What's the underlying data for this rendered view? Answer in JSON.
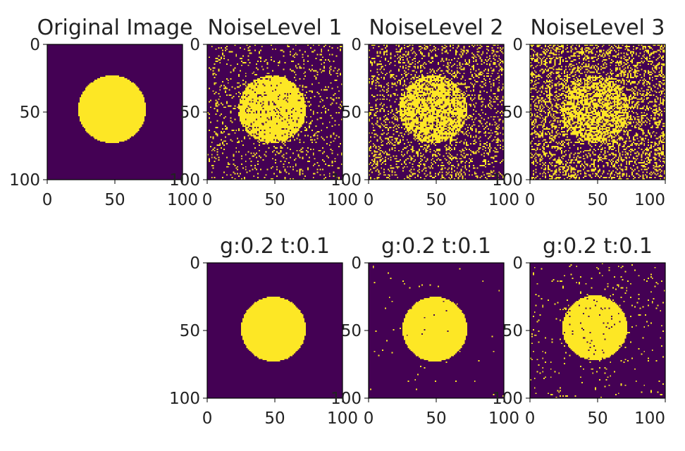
{
  "colors": {
    "background_class": "#440154",
    "foreground_class": "#fde725",
    "axis": "#000000",
    "text": "#222222"
  },
  "chart_data": [
    {
      "type": "heatmap",
      "image": "binary-circle",
      "title": "Original Image",
      "xlim": [
        0,
        100
      ],
      "ylim": [
        100,
        0
      ],
      "xticks": [
        "0",
        "50",
        "100"
      ],
      "yticks": [
        "0",
        "50",
        "100"
      ],
      "circle": {
        "cx": 48,
        "cy": 48,
        "r": 25
      },
      "noise_fraction": 0.0,
      "seed": 11
    },
    {
      "type": "heatmap",
      "image": "noisy-circle",
      "title": "NoiseLevel 1",
      "xlim": [
        0,
        100
      ],
      "ylim": [
        100,
        0
      ],
      "xticks": [
        "0",
        "50",
        "100"
      ],
      "yticks": [
        "0",
        "50",
        "100"
      ],
      "circle": {
        "cx": 48,
        "cy": 48,
        "r": 25
      },
      "noise_fraction": 0.1,
      "seed": 21
    },
    {
      "type": "heatmap",
      "image": "noisy-circle",
      "title": "NoiseLevel 2",
      "xlim": [
        0,
        100
      ],
      "ylim": [
        100,
        0
      ],
      "xticks": [
        "0",
        "50",
        "100"
      ],
      "yticks": [
        "0",
        "50",
        "100"
      ],
      "circle": {
        "cx": 48,
        "cy": 48,
        "r": 25
      },
      "noise_fraction": 0.2,
      "seed": 37
    },
    {
      "type": "heatmap",
      "image": "noisy-circle",
      "title": "NoiseLevel 3",
      "xlim": [
        0,
        100
      ],
      "ylim": [
        100,
        0
      ],
      "xticks": [
        "0",
        "50",
        "100"
      ],
      "yticks": [
        "0",
        "50",
        "100"
      ],
      "circle": {
        "cx": 48,
        "cy": 48,
        "r": 25
      },
      "noise_fraction": 0.3,
      "seed": 53
    },
    {
      "type": "heatmap",
      "image": "denoised-circle",
      "title": "g:0.2 t:0.1",
      "xlim": [
        0,
        100
      ],
      "ylim": [
        100,
        0
      ],
      "xticks": [
        "0",
        "50",
        "100"
      ],
      "yticks": [
        "0",
        "50",
        "100"
      ],
      "circle": {
        "cx": 49,
        "cy": 49,
        "r": 24
      },
      "noise_fraction": 0.0,
      "seed": 61
    },
    {
      "type": "heatmap",
      "image": "denoised-circle",
      "title": "g:0.2 t:0.1",
      "xlim": [
        0,
        100
      ],
      "ylim": [
        100,
        0
      ],
      "xticks": [
        "0",
        "50",
        "100"
      ],
      "yticks": [
        "0",
        "50",
        "100"
      ],
      "circle": {
        "cx": 49,
        "cy": 49,
        "r": 24
      },
      "noise_fraction": 0.006,
      "seed": 73
    },
    {
      "type": "heatmap",
      "image": "denoised-circle",
      "title": "g:0.2 t:0.1",
      "xlim": [
        0,
        100
      ],
      "ylim": [
        100,
        0
      ],
      "xticks": [
        "0",
        "50",
        "100"
      ],
      "yticks": [
        "0",
        "50",
        "100"
      ],
      "circle": {
        "cx": 48,
        "cy": 48,
        "r": 24
      },
      "noise_fraction": 0.03,
      "seed": 89
    }
  ]
}
